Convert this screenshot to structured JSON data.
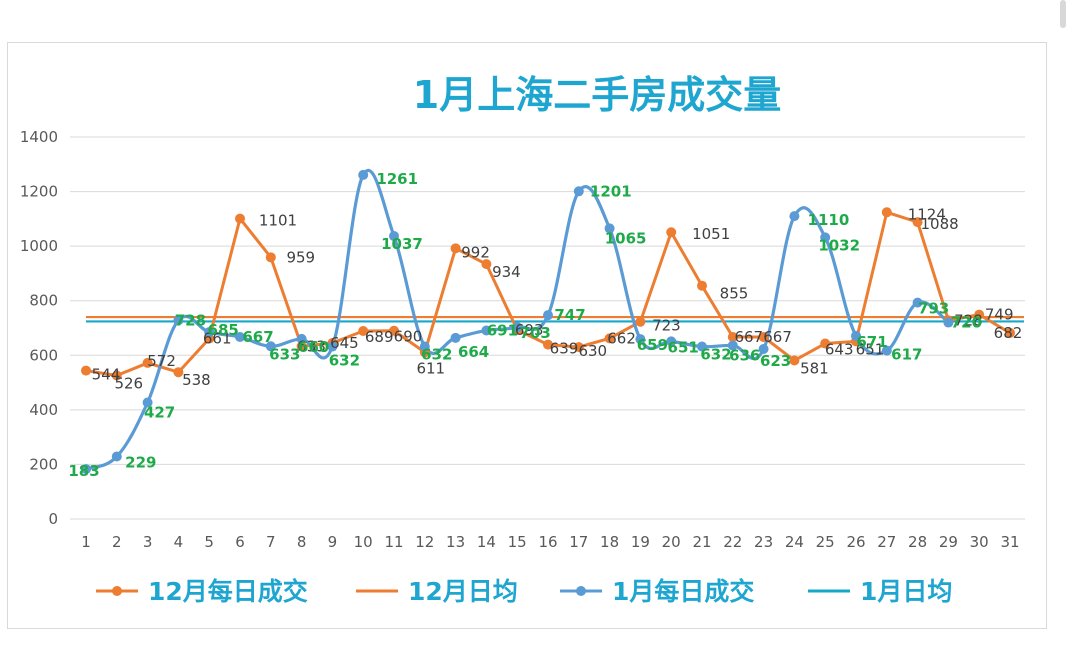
{
  "colors": {
    "dec": "#ED7D31",
    "jan": "#5B9BD5",
    "janAvg": "#17A8C9",
    "decAvg": "#ED7D31",
    "janLabel": "#1FAA4A",
    "decLabel": "#404040",
    "title": "#1FA6D0",
    "grid": "#d9d9d9",
    "tick": "#595959"
  },
  "chart_data": {
    "type": "line",
    "title": "1月上海二手房成交量",
    "xlabel": "",
    "ylabel": "",
    "ylim": [
      0,
      1400
    ],
    "yticks": [
      0,
      200,
      400,
      600,
      800,
      1000,
      1200,
      1400
    ],
    "grid": true,
    "legend_position": "bottom",
    "x": [
      1,
      2,
      3,
      4,
      5,
      6,
      7,
      8,
      9,
      10,
      11,
      12,
      13,
      14,
      15,
      16,
      17,
      18,
      19,
      20,
      21,
      22,
      23,
      24,
      25,
      26,
      27,
      28,
      29,
      30,
      31
    ],
    "series": [
      {
        "name": "12月每日成交",
        "key": "dec",
        "values": [
          544,
          526,
          572,
          538,
          661,
          1101,
          959,
          633,
          645,
          689,
          690,
          611,
          992,
          934,
          693,
          639,
          630,
          662,
          723,
          1051,
          855,
          667,
          667,
          581,
          643,
          651,
          1124,
          1088,
          728,
          749,
          682
        ]
      },
      {
        "name": "12月日均",
        "key": "decAvg",
        "constant": 740
      },
      {
        "name": "1月每日成交",
        "key": "jan",
        "values": [
          183,
          229,
          427,
          728,
          685,
          667,
          633,
          660,
          632,
          1261,
          1037,
          632,
          664,
          691,
          703,
          747,
          1201,
          1065,
          659,
          651,
          632,
          636,
          623,
          1110,
          1032,
          671,
          617,
          793,
          720,
          null,
          null
        ]
      },
      {
        "name": "1月日均",
        "key": "janAvg",
        "constant": 724
      }
    ]
  }
}
